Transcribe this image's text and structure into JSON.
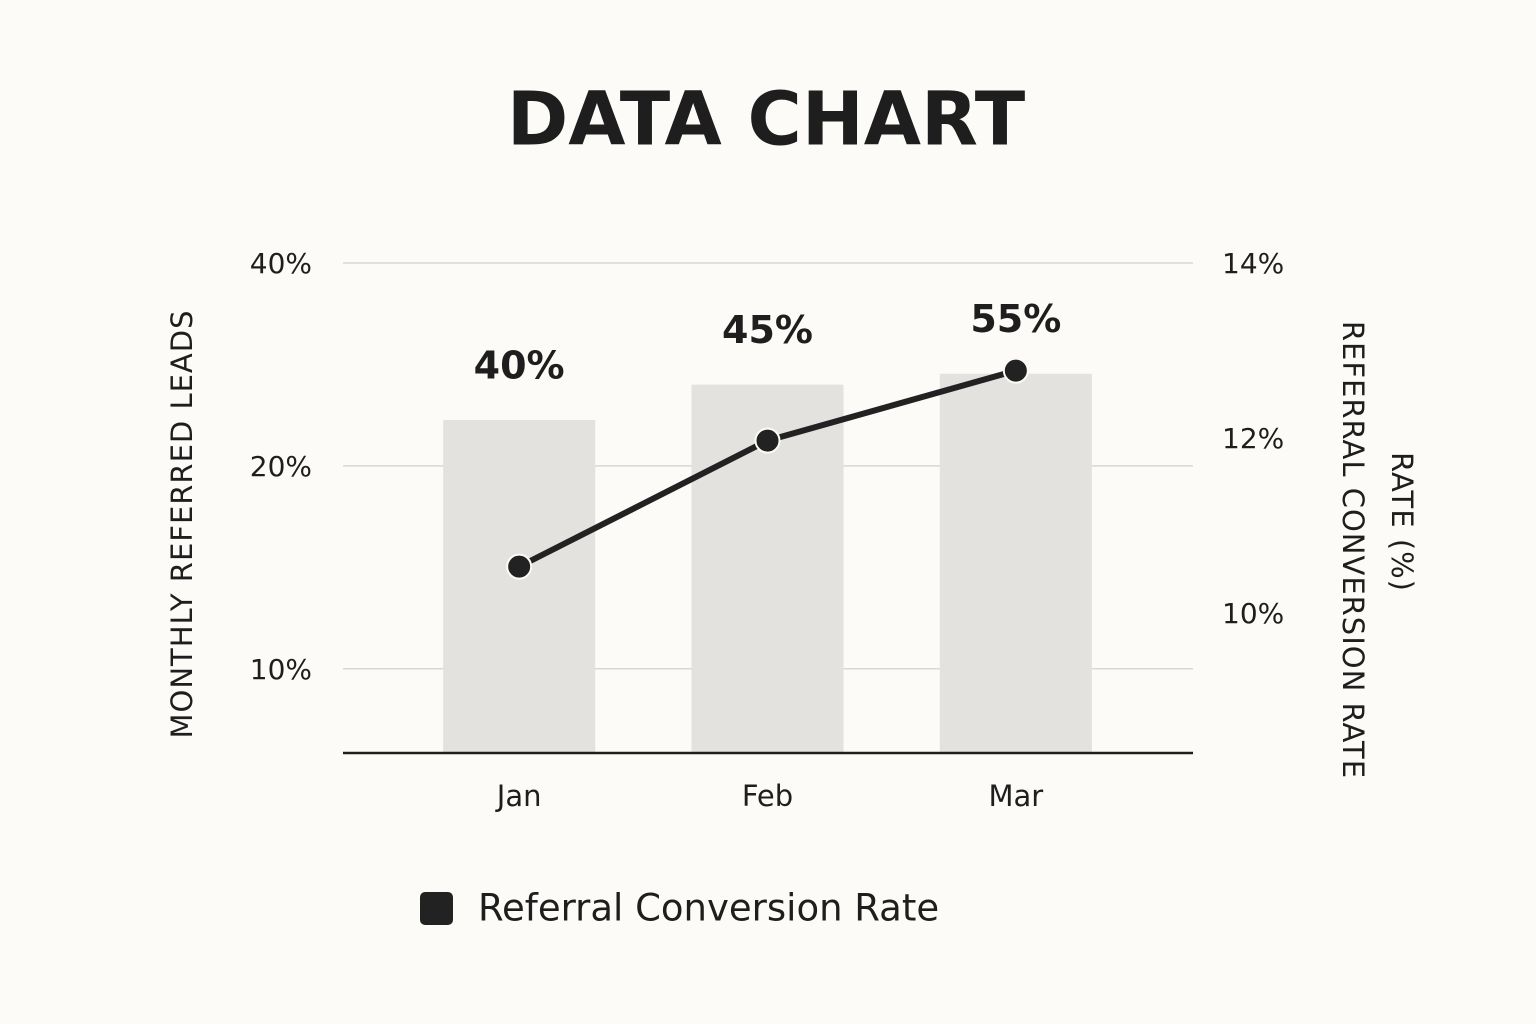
{
  "chart_data": {
    "type": "combo",
    "title": "DATA CHART",
    "categories": [
      "Jan",
      "Feb",
      "Mar"
    ],
    "series": [
      {
        "type": "bar",
        "color": "#e3e2df",
        "values": [
          23.4,
          26.4,
          27.4
        ]
      },
      {
        "type": "line",
        "name": "Referral Conversion Rate",
        "color": "#222222",
        "axis": "y2",
        "values": [
          10.53,
          11.97,
          12.77
        ]
      }
    ],
    "annotations": [
      "40%",
      "45%",
      "55%"
    ],
    "ylabel": "MONTHLY REFERRED LEADS",
    "y2label": [
      "REFERRAL CONVERSION RATE",
      "RATE (%)"
    ],
    "yscale": "log",
    "ylim": [
      7.5,
      40
    ],
    "yticks": [
      {
        "value": 10,
        "label": "10%"
      },
      {
        "value": 20,
        "label": "20%"
      },
      {
        "value": 40,
        "label": "40%"
      }
    ],
    "y2lim": [
      8.4,
      14
    ],
    "y2ticks": [
      {
        "value": 10,
        "label": "10%"
      },
      {
        "value": 12,
        "label": "12%"
      },
      {
        "value": 14,
        "label": "14%"
      }
    ],
    "grid": true
  }
}
